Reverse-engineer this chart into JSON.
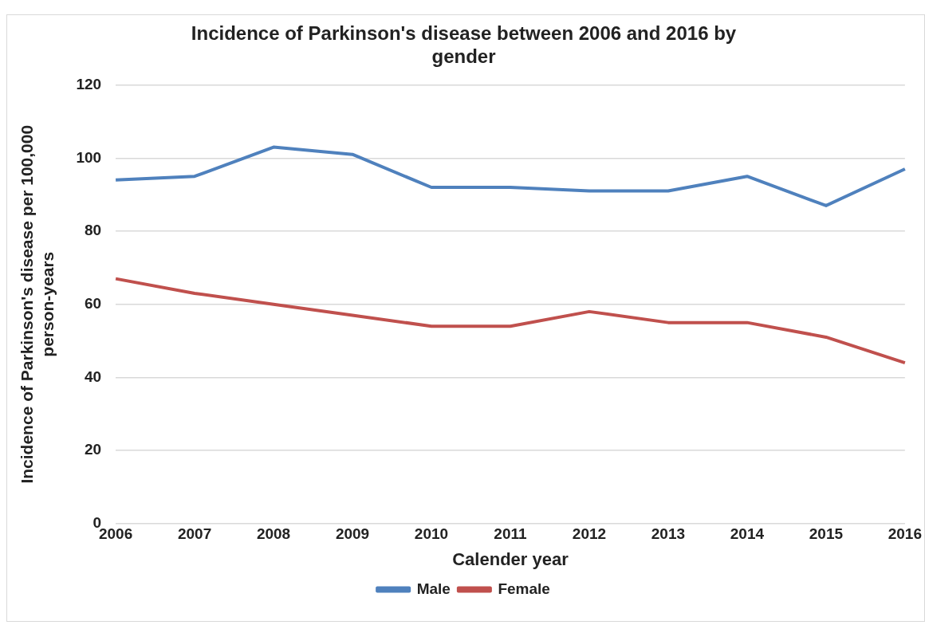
{
  "chart_data": {
    "type": "line",
    "title": [
      "Incidence of Parkinson's disease between 2006 and 2016 by",
      "gender"
    ],
    "xlabel": "Calender year",
    "ylabel": [
      "Incidence of Parkinson's disease per 100,000",
      "person-years"
    ],
    "categories": [
      "2006",
      "2007",
      "2008",
      "2009",
      "2010",
      "2011",
      "2012",
      "2013",
      "2014",
      "2015",
      "2016"
    ],
    "series": [
      {
        "name": "Male",
        "color": "#4f81bd",
        "values": [
          94,
          95,
          103,
          101,
          92,
          92,
          91,
          91,
          95,
          87,
          97
        ]
      },
      {
        "name": "Female",
        "color": "#c0504d",
        "values": [
          67,
          63,
          60,
          57,
          54,
          54,
          58,
          55,
          55,
          51,
          44
        ]
      }
    ],
    "ylim": [
      0,
      120
    ],
    "yticks": [
      0,
      20,
      40,
      60,
      80,
      100,
      120
    ],
    "grid": "y",
    "legend": "bottom",
    "marker": "none",
    "line_style": "solid"
  }
}
